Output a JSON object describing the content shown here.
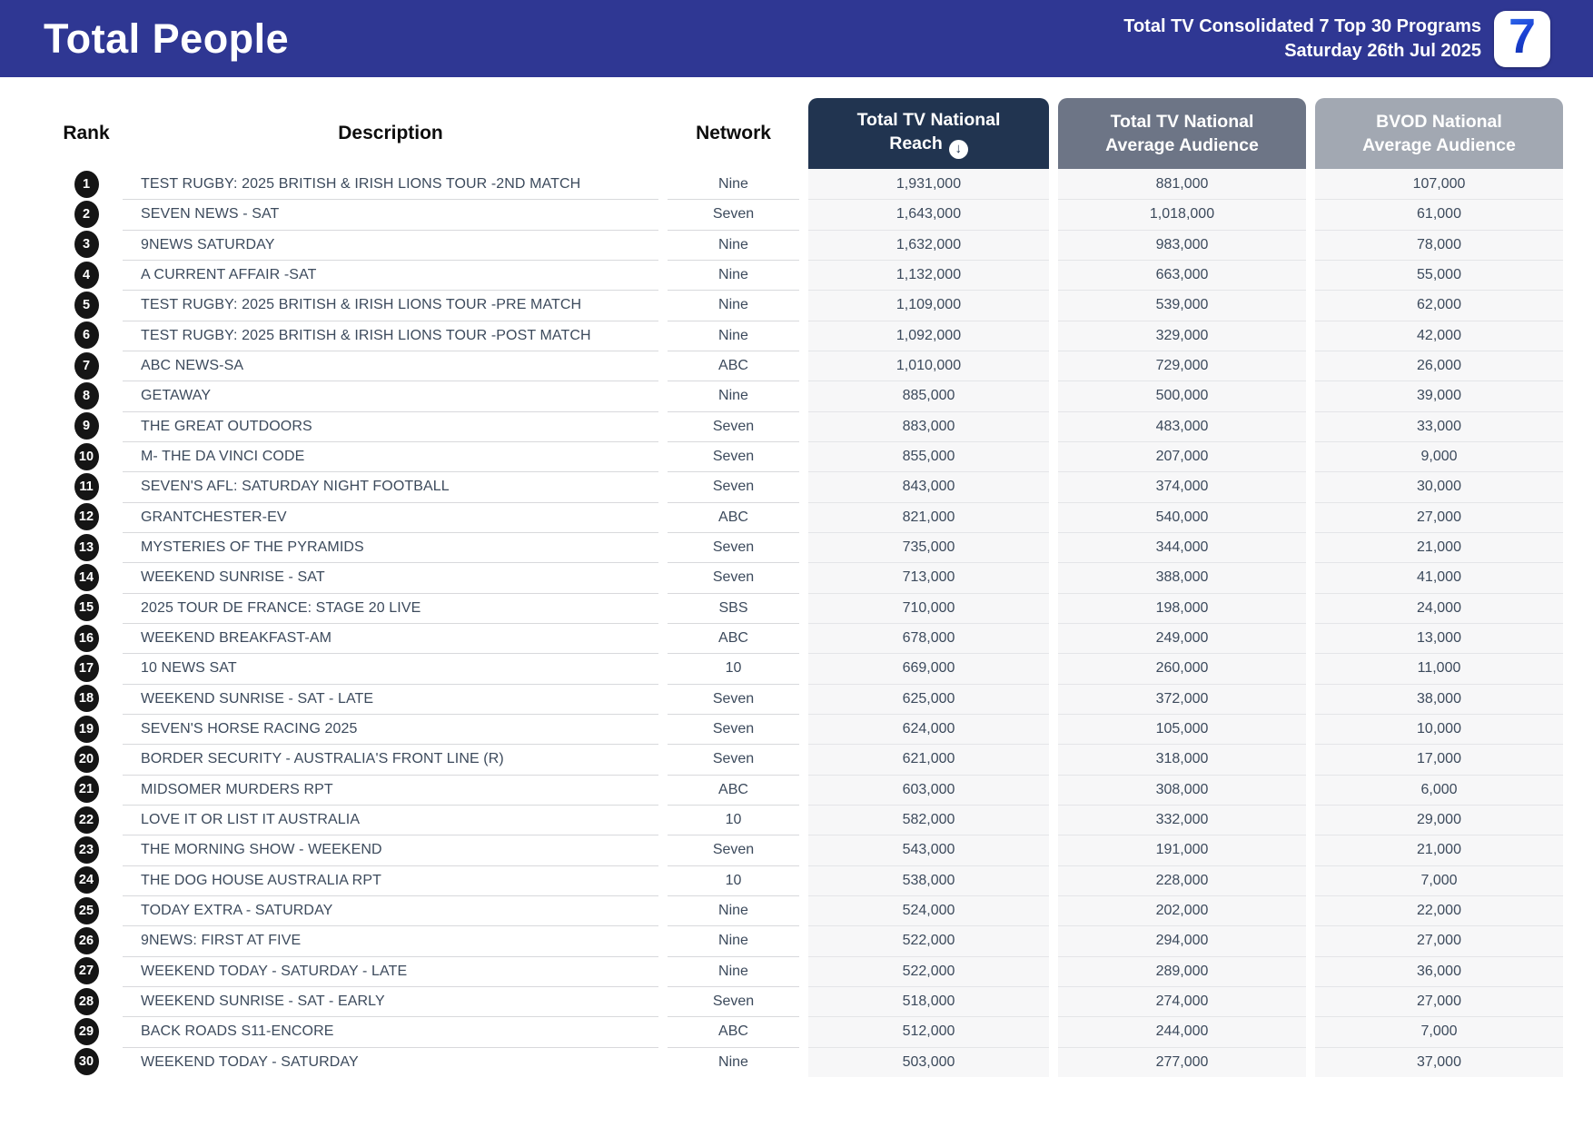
{
  "header": {
    "title": "Total People",
    "report_line1": "Total TV Consolidated 7 Top 30 Programs",
    "report_line2": "Saturday 26th Jul 2025",
    "logo": {
      "icon": "seven-network-logo",
      "text": "7"
    }
  },
  "table": {
    "columns": {
      "rank": "Rank",
      "description": "Description",
      "network": "Network",
      "reach": {
        "line1": "Total TV National",
        "line2": "Reach",
        "sort_icon": "circle-down-arrow",
        "sort_glyph": "↓"
      },
      "avg": {
        "line1": "Total TV National",
        "line2": "Average Audience"
      },
      "bvod": {
        "line1": "BVOD National",
        "line2": "Average Audience"
      }
    },
    "rows": [
      {
        "rank": "1",
        "description": "TEST RUGBY: 2025 BRITISH & IRISH LIONS TOUR -2ND MATCH",
        "network": "Nine",
        "reach": "1,931,000",
        "avg": "881,000",
        "bvod": "107,000"
      },
      {
        "rank": "2",
        "description": "SEVEN NEWS - SAT",
        "network": "Seven",
        "reach": "1,643,000",
        "avg": "1,018,000",
        "bvod": "61,000"
      },
      {
        "rank": "3",
        "description": "9NEWS SATURDAY",
        "network": "Nine",
        "reach": "1,632,000",
        "avg": "983,000",
        "bvod": "78,000"
      },
      {
        "rank": "4",
        "description": "A CURRENT AFFAIR -SAT",
        "network": "Nine",
        "reach": "1,132,000",
        "avg": "663,000",
        "bvod": "55,000"
      },
      {
        "rank": "5",
        "description": "TEST RUGBY: 2025 BRITISH & IRISH LIONS TOUR -PRE MATCH",
        "network": "Nine",
        "reach": "1,109,000",
        "avg": "539,000",
        "bvod": "62,000"
      },
      {
        "rank": "6",
        "description": "TEST RUGBY: 2025 BRITISH & IRISH LIONS TOUR -POST MATCH",
        "network": "Nine",
        "reach": "1,092,000",
        "avg": "329,000",
        "bvod": "42,000"
      },
      {
        "rank": "7",
        "description": "ABC NEWS-SA",
        "network": "ABC",
        "reach": "1,010,000",
        "avg": "729,000",
        "bvod": "26,000"
      },
      {
        "rank": "8",
        "description": "GETAWAY",
        "network": "Nine",
        "reach": "885,000",
        "avg": "500,000",
        "bvod": "39,000"
      },
      {
        "rank": "9",
        "description": "THE GREAT OUTDOORS",
        "network": "Seven",
        "reach": "883,000",
        "avg": "483,000",
        "bvod": "33,000"
      },
      {
        "rank": "10",
        "description": "M- THE DA VINCI CODE",
        "network": "Seven",
        "reach": "855,000",
        "avg": "207,000",
        "bvod": "9,000"
      },
      {
        "rank": "11",
        "description": "SEVEN'S AFL: SATURDAY NIGHT FOOTBALL",
        "network": "Seven",
        "reach": "843,000",
        "avg": "374,000",
        "bvod": "30,000"
      },
      {
        "rank": "12",
        "description": "GRANTCHESTER-EV",
        "network": "ABC",
        "reach": "821,000",
        "avg": "540,000",
        "bvod": "27,000"
      },
      {
        "rank": "13",
        "description": "MYSTERIES OF THE PYRAMIDS",
        "network": "Seven",
        "reach": "735,000",
        "avg": "344,000",
        "bvod": "21,000"
      },
      {
        "rank": "14",
        "description": "WEEKEND SUNRISE - SAT",
        "network": "Seven",
        "reach": "713,000",
        "avg": "388,000",
        "bvod": "41,000"
      },
      {
        "rank": "15",
        "description": "2025 TOUR DE FRANCE: STAGE 20 LIVE",
        "network": "SBS",
        "reach": "710,000",
        "avg": "198,000",
        "bvod": "24,000"
      },
      {
        "rank": "16",
        "description": "WEEKEND BREAKFAST-AM",
        "network": "ABC",
        "reach": "678,000",
        "avg": "249,000",
        "bvod": "13,000"
      },
      {
        "rank": "17",
        "description": "10 NEWS SAT",
        "network": "10",
        "reach": "669,000",
        "avg": "260,000",
        "bvod": "11,000"
      },
      {
        "rank": "18",
        "description": "WEEKEND SUNRISE - SAT - LATE",
        "network": "Seven",
        "reach": "625,000",
        "avg": "372,000",
        "bvod": "38,000"
      },
      {
        "rank": "19",
        "description": "SEVEN'S HORSE RACING 2025",
        "network": "Seven",
        "reach": "624,000",
        "avg": "105,000",
        "bvod": "10,000"
      },
      {
        "rank": "20",
        "description": "BORDER SECURITY - AUSTRALIA'S FRONT LINE (R)",
        "network": "Seven",
        "reach": "621,000",
        "avg": "318,000",
        "bvod": "17,000"
      },
      {
        "rank": "21",
        "description": "MIDSOMER MURDERS RPT",
        "network": "ABC",
        "reach": "603,000",
        "avg": "308,000",
        "bvod": "6,000"
      },
      {
        "rank": "22",
        "description": "LOVE IT OR LIST IT AUSTRALIA",
        "network": "10",
        "reach": "582,000",
        "avg": "332,000",
        "bvod": "29,000"
      },
      {
        "rank": "23",
        "description": "THE MORNING SHOW - WEEKEND",
        "network": "Seven",
        "reach": "543,000",
        "avg": "191,000",
        "bvod": "21,000"
      },
      {
        "rank": "24",
        "description": "THE DOG HOUSE AUSTRALIA RPT",
        "network": "10",
        "reach": "538,000",
        "avg": "228,000",
        "bvod": "7,000"
      },
      {
        "rank": "25",
        "description": "TODAY EXTRA - SATURDAY",
        "network": "Nine",
        "reach": "524,000",
        "avg": "202,000",
        "bvod": "22,000"
      },
      {
        "rank": "26",
        "description": "9NEWS: FIRST AT FIVE",
        "network": "Nine",
        "reach": "522,000",
        "avg": "294,000",
        "bvod": "27,000"
      },
      {
        "rank": "27",
        "description": "WEEKEND TODAY - SATURDAY - LATE",
        "network": "Nine",
        "reach": "522,000",
        "avg": "289,000",
        "bvod": "36,000"
      },
      {
        "rank": "28",
        "description": "WEEKEND SUNRISE - SAT - EARLY",
        "network": "Seven",
        "reach": "518,000",
        "avg": "274,000",
        "bvod": "27,000"
      },
      {
        "rank": "29",
        "description": "BACK ROADS S11-ENCORE",
        "network": "ABC",
        "reach": "512,000",
        "avg": "244,000",
        "bvod": "7,000"
      },
      {
        "rank": "30",
        "description": "WEEKEND TODAY - SATURDAY",
        "network": "Nine",
        "reach": "503,000",
        "avg": "277,000",
        "bvod": "37,000"
      }
    ]
  },
  "footer": {
    "segment_colors": [
      "#2f3793",
      "#f5562a",
      "#58cc83"
    ]
  },
  "colors": {
    "banner": "#2f3793",
    "reach_header": "#213450",
    "avg_header": "#6d7586",
    "bvod_header": "#a2a8b2",
    "row_stripe": "#f7f7f8",
    "body_text": "#3c4a5c"
  }
}
